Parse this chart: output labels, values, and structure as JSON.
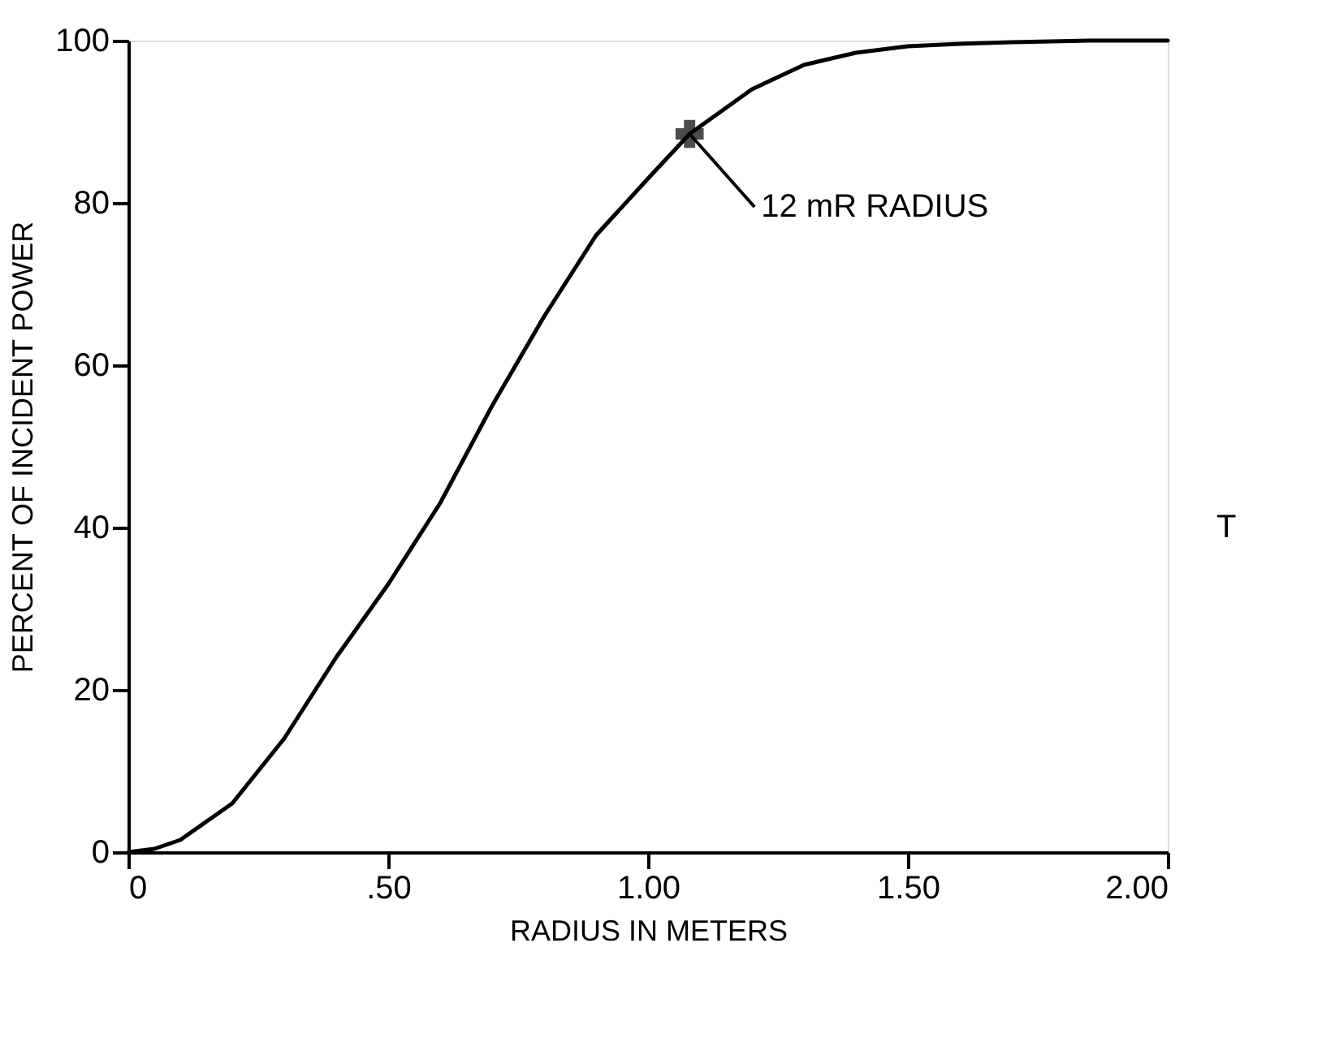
{
  "chart_data": {
    "type": "line",
    "xlabel": "RADIUS IN METERS",
    "ylabel": "PERCENT OF INCIDENT POWER",
    "xlim": [
      0,
      2.0
    ],
    "xticks": [
      {
        "value": 0,
        "label": "0"
      },
      {
        "value": 0.5,
        "label": ".50"
      },
      {
        "value": 1.0,
        "label": "1.00"
      },
      {
        "value": 1.5,
        "label": "1.50"
      },
      {
        "value": 2.0,
        "label": "2.00"
      }
    ],
    "ylim": [
      0,
      100
    ],
    "yticks": [
      0,
      20,
      40,
      60,
      80,
      100
    ],
    "grid": false,
    "series": [
      {
        "color": "#000000",
        "marker": "none",
        "line_style": "solid",
        "x": [
          0,
          0.05,
          0.1,
          0.2,
          0.3,
          0.4,
          0.5,
          0.6,
          0.7,
          0.8,
          0.9,
          1.0,
          1.08,
          1.2,
          1.3,
          1.4,
          1.5,
          1.6,
          1.7,
          1.85,
          2.0
        ],
        "values": [
          0,
          0.4,
          1.5,
          6,
          14,
          24,
          33,
          43,
          55,
          66,
          76,
          83,
          88.5,
          94,
          97,
          98.5,
          99.3,
          99.6,
          99.8,
          100,
          100
        ]
      },
      {
        "type": "scatter",
        "color": "#000000",
        "marker": "cross",
        "x": [
          1.08
        ],
        "values": [
          88.5
        ]
      }
    ],
    "annotations": [
      {
        "text": "12 mR RADIUS",
        "x": 1.08,
        "y": 88.5
      },
      "T"
    ]
  }
}
